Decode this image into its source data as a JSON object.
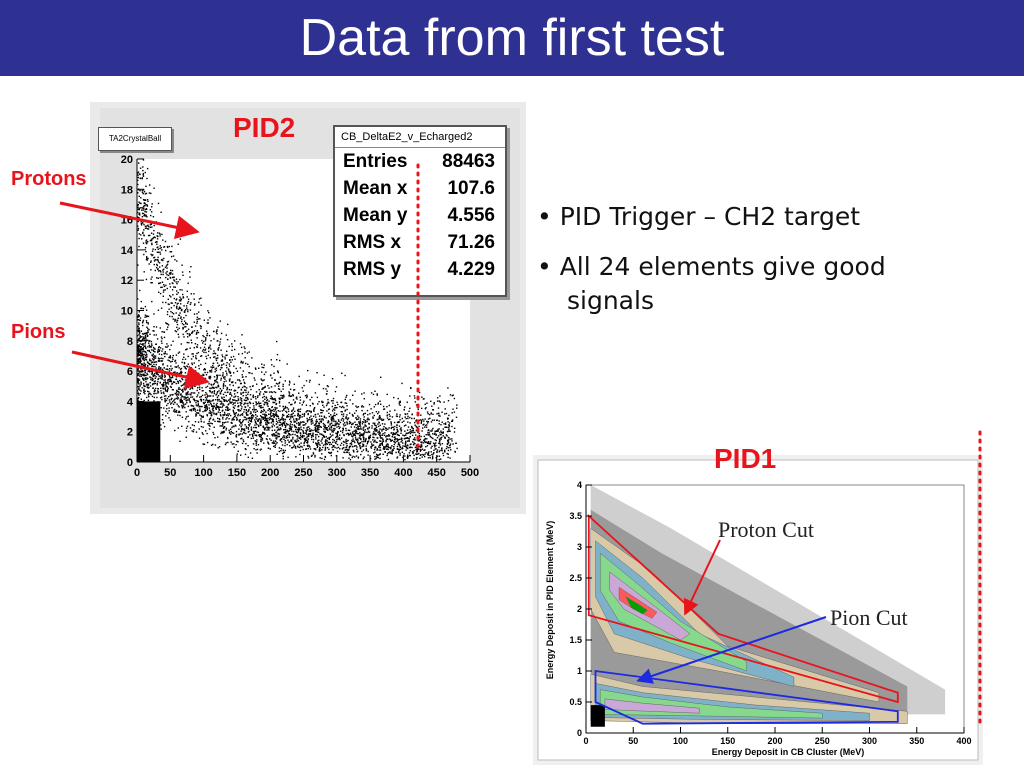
{
  "title": "Data from first test",
  "labels": {
    "pid2": "PID2",
    "pid1": "PID1",
    "protons": "Protons",
    "pions": "Pions"
  },
  "bullets": [
    "• PID Trigger – CH2 target",
    "• All 24 elements give good",
    "signals"
  ],
  "colors": {
    "title_bg": "#2e3192",
    "accent_red": "#e8141c",
    "cut_blue": "#1d2ae0"
  },
  "chart_data": [
    {
      "type": "scatter",
      "name_box": "TA2CrystalBall",
      "stats_title": "CB_DeltaE2_v_Echarged2",
      "stats": [
        {
          "label": "Entries",
          "value": "88463"
        },
        {
          "label": "Mean x",
          "value": "107.6"
        },
        {
          "label": "Mean y",
          "value": "4.556"
        },
        {
          "label": "RMS x",
          "value": "71.26"
        },
        {
          "label": "RMS y",
          "value": "4.229"
        }
      ],
      "xlim": [
        0,
        500
      ],
      "ylim": [
        0,
        20
      ],
      "x_ticks": [
        "0",
        "50",
        "100",
        "150",
        "200",
        "250",
        "300",
        "350",
        "400",
        "450",
        "500"
      ],
      "y_ticks": [
        "0",
        "2",
        "4",
        "6",
        "8",
        "10",
        "12",
        "14",
        "16",
        "18",
        "20"
      ],
      "dotted_line_x": 420,
      "annotations": [
        "Protons",
        "Pions"
      ]
    },
    {
      "type": "heatmap",
      "xlabel": "Energy Deposit in CB Cluster (MeV)",
      "ylabel": "Energy Deposit in PID Element (MeV)",
      "xlim": [
        0,
        400
      ],
      "ylim": [
        0,
        4
      ],
      "x_ticks": [
        "0",
        "50",
        "100",
        "150",
        "200",
        "250",
        "300",
        "350",
        "400"
      ],
      "y_ticks": [
        "0",
        "0.5",
        "1",
        "1.5",
        "2",
        "2.5",
        "3",
        "3.5",
        "4"
      ],
      "annotations": [
        "Proton Cut",
        "Pion Cut"
      ],
      "proton_cut": [
        [
          3,
          3.5
        ],
        [
          140,
          1.6
        ],
        [
          330,
          0.65
        ],
        [
          330,
          0.5
        ],
        [
          3,
          1.9
        ]
      ],
      "pion_cut": [
        [
          10,
          1.0
        ],
        [
          330,
          0.35
        ],
        [
          330,
          0.18
        ],
        [
          60,
          0.15
        ],
        [
          10,
          0.5
        ]
      ]
    }
  ]
}
